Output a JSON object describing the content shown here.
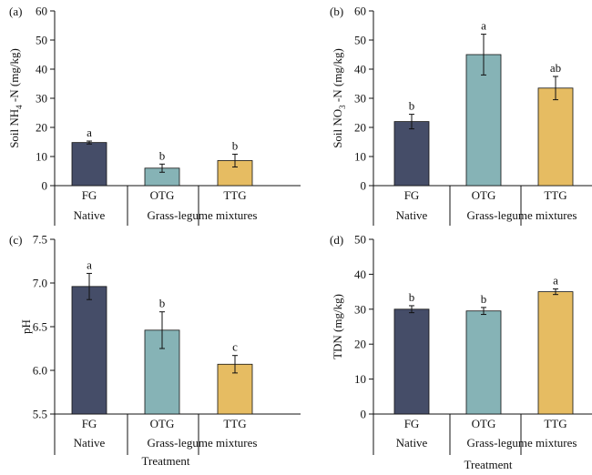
{
  "chart_data": [
    {
      "panel": "(a)",
      "type": "bar",
      "ylabel": "Soil NH4 -N (mg/kg)",
      "ylabel_parts": {
        "pre": "Soil NH",
        "sub": "4",
        "post": " -N (mg/kg)"
      },
      "categories": [
        "FG",
        "OTG",
        "TTG"
      ],
      "groups": [
        "Native",
        "Grass-legume mixtures"
      ],
      "values": [
        14.8,
        6.0,
        8.6
      ],
      "errors": [
        0.5,
        1.4,
        2.2
      ],
      "letters": [
        "a",
        "b",
        "b"
      ],
      "ylim": [
        0,
        60
      ],
      "yticks": [
        0,
        10,
        20,
        30,
        40,
        50,
        60
      ],
      "yticklabels": [
        "0",
        "10",
        "20",
        "30",
        "40",
        "50",
        "60"
      ],
      "xlabel": ""
    },
    {
      "panel": "(b)",
      "type": "bar",
      "ylabel": "Soil NO3 -N (mg/kg)",
      "ylabel_parts": {
        "pre": "Soil NO",
        "sub": "3",
        "post": " -N (mg/kg)"
      },
      "categories": [
        "FG",
        "OTG",
        "TTG"
      ],
      "groups": [
        "Native",
        "Grass-legume mixtures"
      ],
      "values": [
        22.0,
        45.0,
        33.5
      ],
      "errors": [
        2.5,
        7.0,
        4.0
      ],
      "letters": [
        "b",
        "a",
        "ab"
      ],
      "ylim": [
        0,
        60
      ],
      "yticks": [
        0,
        10,
        20,
        30,
        40,
        50,
        60
      ],
      "yticklabels": [
        "0",
        "10",
        "20",
        "30",
        "40",
        "50",
        "60"
      ],
      "xlabel": ""
    },
    {
      "panel": "(c)",
      "type": "bar",
      "ylabel": "pH",
      "ylabel_parts": {
        "pre": "pH",
        "sub": "",
        "post": ""
      },
      "categories": [
        "FG",
        "OTG",
        "TTG"
      ],
      "groups": [
        "Native",
        "Grass-legume mixtures"
      ],
      "values": [
        6.96,
        6.46,
        6.07
      ],
      "errors": [
        0.15,
        0.21,
        0.1
      ],
      "letters": [
        "a",
        "b",
        "c"
      ],
      "ylim": [
        5.5,
        7.5
      ],
      "yticks": [
        5.5,
        6.0,
        6.5,
        7.0,
        7.5
      ],
      "yticklabels": [
        "5.5",
        "6.0",
        "6.5",
        "7.0",
        "7.5"
      ],
      "xlabel": "Treatment"
    },
    {
      "panel": "(d)",
      "type": "bar",
      "ylabel": "TDN (mg/kg)",
      "ylabel_parts": {
        "pre": "TDN (mg/kg)",
        "sub": "",
        "post": ""
      },
      "categories": [
        "FG",
        "OTG",
        "TTG"
      ],
      "groups": [
        "Native",
        "Grass-legume mixtures"
      ],
      "values": [
        30.0,
        29.5,
        35.0
      ],
      "errors": [
        1.0,
        1.0,
        0.8
      ],
      "letters": [
        "b",
        "b",
        "a"
      ],
      "ylim": [
        0,
        50
      ],
      "yticks": [
        0,
        10,
        20,
        30,
        40,
        50
      ],
      "yticklabels": [
        "0",
        "10",
        "20",
        "30",
        "40",
        "50"
      ],
      "xlabel": "Treatment"
    }
  ],
  "colors": {
    "FG": "#454d68",
    "OTG": "#86b3b6",
    "TTG": "#e6bc62"
  }
}
